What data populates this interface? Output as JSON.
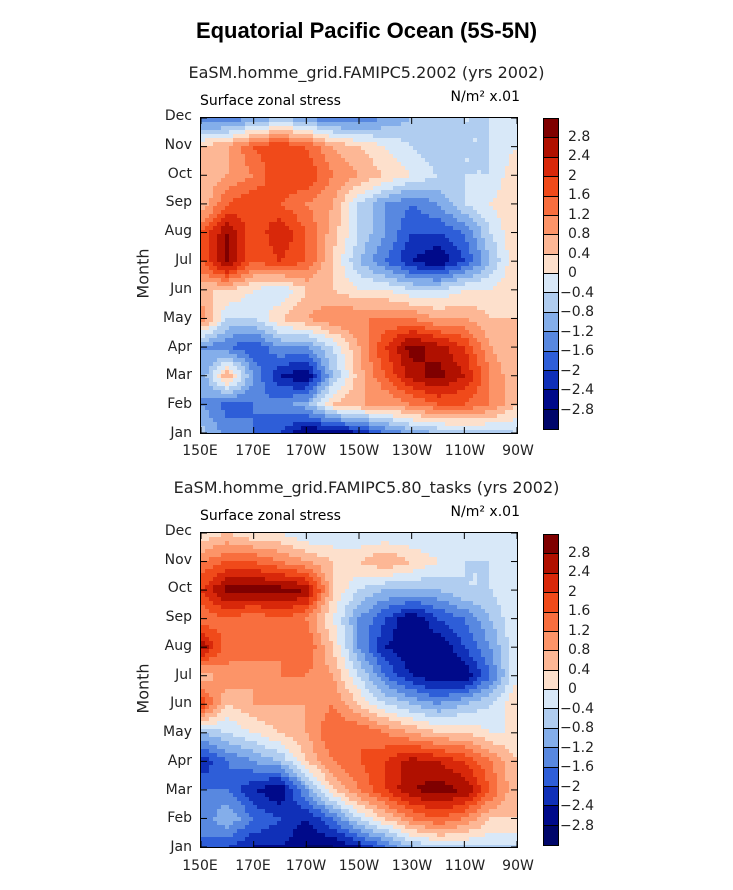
{
  "title": "Equatorial Pacific Ocean (5S-5N)",
  "colorbar": {
    "labels": [
      "2.8",
      "2.4",
      "2",
      "1.6",
      "1.2",
      "0.8",
      "0.4",
      "0",
      "−0.4",
      "−0.8",
      "−1.2",
      "−1.6",
      "−2",
      "−2.4",
      "−2.8"
    ],
    "colors": [
      "#7f0000",
      "#b01000",
      "#d8280a",
      "#f04a1a",
      "#f86e3e",
      "#fc9468",
      "#fdb795",
      "#fde0cc",
      "#d8e8f8",
      "#b0cdf0",
      "#84aeea",
      "#5888e0",
      "#2e5ed8",
      "#1030b8",
      "#000a8a",
      "#00066a"
    ]
  },
  "colors": {
    "positive_max": "#7f0000",
    "neutral": "#ffffff",
    "negative_max": "#00066a"
  },
  "chart_data": [
    {
      "type": "heatmap",
      "title": "EaSM.homme_grid.FAMIPC5.2002 (yrs 2002)",
      "left_label": "Surface zonal stress",
      "right_label": "N/m² x.01",
      "xlabel": "",
      "ylabel": "Month",
      "x_ticks": [
        "150E",
        "170E",
        "170W",
        "150W",
        "130W",
        "110W",
        "90W"
      ],
      "y_ticks": [
        "Jan",
        "Feb",
        "Mar",
        "Apr",
        "May",
        "Jun",
        "Jul",
        "Aug",
        "Sep",
        "Oct",
        "Nov",
        "Dec"
      ],
      "x_range": [
        150,
        270
      ],
      "levels": [
        -2.8,
        -2.4,
        -2,
        -1.6,
        -1.2,
        -0.8,
        -0.4,
        0,
        0.4,
        0.8,
        1.2,
        1.6,
        2,
        2.4,
        2.8
      ],
      "x_lon": [
        150,
        160,
        170,
        180,
        190,
        200,
        210,
        220,
        230,
        240,
        250,
        260,
        270
      ],
      "z": [
        [
          -0.6,
          -1.4,
          -1.6,
          -2.0,
          -2.8,
          -2.8,
          -2.4,
          -1.6,
          -1.0,
          -0.8,
          -0.6,
          -0.6,
          -0.4
        ],
        [
          -1.2,
          -1.8,
          -1.6,
          -1.4,
          -1.0,
          0.4,
          0.8,
          0.8,
          1.2,
          1.6,
          1.6,
          1.2,
          0.4
        ],
        [
          -1.2,
          0.8,
          -1.2,
          -2.4,
          -2.8,
          -0.8,
          0.6,
          1.6,
          2.6,
          3.0,
          2.4,
          1.2,
          0.4
        ],
        [
          -1.2,
          -1.6,
          -2.0,
          -1.2,
          -1.2,
          -0.4,
          0.8,
          2.0,
          3.0,
          2.6,
          2.0,
          0.8,
          0.4
        ],
        [
          1.2,
          -0.4,
          -0.4,
          0.4,
          0.8,
          1.2,
          1.2,
          1.2,
          1.2,
          0.8,
          0.8,
          0.4,
          0.4
        ],
        [
          0.4,
          0.4,
          0.0,
          -0.4,
          0.4,
          0.4,
          0.0,
          0.0,
          -0.4,
          -0.4,
          0.0,
          0.0,
          0.4
        ],
        [
          1.6,
          3.0,
          1.6,
          2.0,
          1.6,
          0.4,
          -0.8,
          -1.6,
          -2.4,
          -2.8,
          -2.0,
          -0.8,
          0.4
        ],
        [
          1.6,
          2.8,
          1.6,
          2.4,
          1.6,
          0.6,
          -0.4,
          -1.2,
          -2.0,
          -2.0,
          -1.6,
          -0.4,
          0.4
        ],
        [
          0.4,
          1.6,
          2.0,
          1.6,
          1.2,
          0.8,
          -0.4,
          -1.2,
          -1.6,
          -1.2,
          -0.4,
          0.0,
          0.4
        ],
        [
          0.4,
          0.8,
          1.2,
          2.0,
          2.0,
          1.2,
          0.8,
          0.4,
          0.0,
          -0.4,
          -0.4,
          -0.4,
          0.4
        ],
        [
          0.4,
          0.8,
          1.6,
          2.0,
          1.6,
          0.8,
          0.4,
          0.0,
          -0.4,
          -0.8,
          -0.4,
          -0.4,
          0.0
        ],
        [
          -1.6,
          -1.6,
          -1.2,
          -0.8,
          -1.2,
          -1.6,
          -1.6,
          -1.2,
          -0.8,
          -0.4,
          -0.4,
          -0.4,
          -0.4
        ]
      ]
    },
    {
      "type": "heatmap",
      "title": "EaSM.homme_grid.FAMIPC5.80_tasks (yrs 2002)",
      "left_label": "Surface zonal stress",
      "right_label": "N/m² x.01",
      "xlabel": "",
      "ylabel": "Month",
      "x_ticks": [
        "150E",
        "170E",
        "170W",
        "150W",
        "130W",
        "110W",
        "90W"
      ],
      "y_ticks": [
        "Jan",
        "Feb",
        "Mar",
        "Apr",
        "May",
        "Jun",
        "Jul",
        "Aug",
        "Sep",
        "Oct",
        "Nov",
        "Dec"
      ],
      "x_range": [
        150,
        270
      ],
      "levels": [
        -2.8,
        -2.4,
        -2,
        -1.6,
        -1.2,
        -0.8,
        -0.4,
        0,
        0.4,
        0.8,
        1.2,
        1.6,
        2,
        2.4,
        2.8
      ],
      "x_lon": [
        150,
        160,
        170,
        180,
        190,
        200,
        210,
        220,
        230,
        240,
        250,
        260,
        270
      ],
      "z": [
        [
          -1.6,
          -2.0,
          -2.4,
          -2.4,
          -2.8,
          -2.8,
          -2.4,
          -1.6,
          -0.8,
          -0.4,
          -0.4,
          -0.4,
          -0.4
        ],
        [
          -1.6,
          -0.8,
          -1.6,
          -2.0,
          -2.4,
          -1.6,
          -0.4,
          0.4,
          1.2,
          1.6,
          1.2,
          0.4,
          0.4
        ],
        [
          -1.6,
          -1.6,
          -2.4,
          -2.8,
          -1.2,
          0.4,
          1.2,
          2.0,
          2.8,
          3.0,
          2.8,
          1.6,
          0.4
        ],
        [
          -2.4,
          -1.6,
          -1.2,
          -0.8,
          0.4,
          1.2,
          1.6,
          2.0,
          2.6,
          2.4,
          2.0,
          1.2,
          0.4
        ],
        [
          -0.8,
          -0.4,
          0.0,
          0.4,
          0.8,
          1.6,
          1.6,
          1.2,
          0.8,
          0.4,
          0.4,
          0.0,
          0.0
        ],
        [
          2.0,
          0.4,
          0.8,
          0.8,
          0.8,
          1.2,
          0.4,
          -0.4,
          -0.8,
          -1.2,
          -0.8,
          -0.4,
          0.4
        ],
        [
          0.4,
          1.2,
          0.8,
          1.2,
          1.2,
          0.8,
          -0.4,
          -1.6,
          -2.4,
          -2.8,
          -2.8,
          -1.6,
          0.0
        ],
        [
          2.8,
          1.2,
          1.6,
          1.2,
          1.6,
          0.4,
          -1.2,
          -2.4,
          -2.8,
          -2.8,
          -2.0,
          -1.2,
          0.0
        ],
        [
          1.2,
          1.6,
          1.2,
          1.6,
          1.2,
          0.0,
          -1.2,
          -2.0,
          -2.8,
          -2.0,
          -1.6,
          -0.8,
          0.0
        ],
        [
          2.0,
          3.0,
          3.0,
          3.0,
          2.8,
          0.4,
          -0.4,
          -0.8,
          -0.8,
          -0.8,
          -0.4,
          -0.4,
          0.0
        ],
        [
          1.2,
          1.6,
          1.6,
          1.2,
          0.8,
          0.4,
          0.4,
          0.8,
          0.4,
          0.0,
          -0.4,
          -0.4,
          0.0
        ],
        [
          0.0,
          0.4,
          0.0,
          0.0,
          -0.4,
          -0.4,
          -0.4,
          -0.4,
          -0.4,
          -0.4,
          0.0,
          0.0,
          0.0
        ]
      ]
    }
  ]
}
